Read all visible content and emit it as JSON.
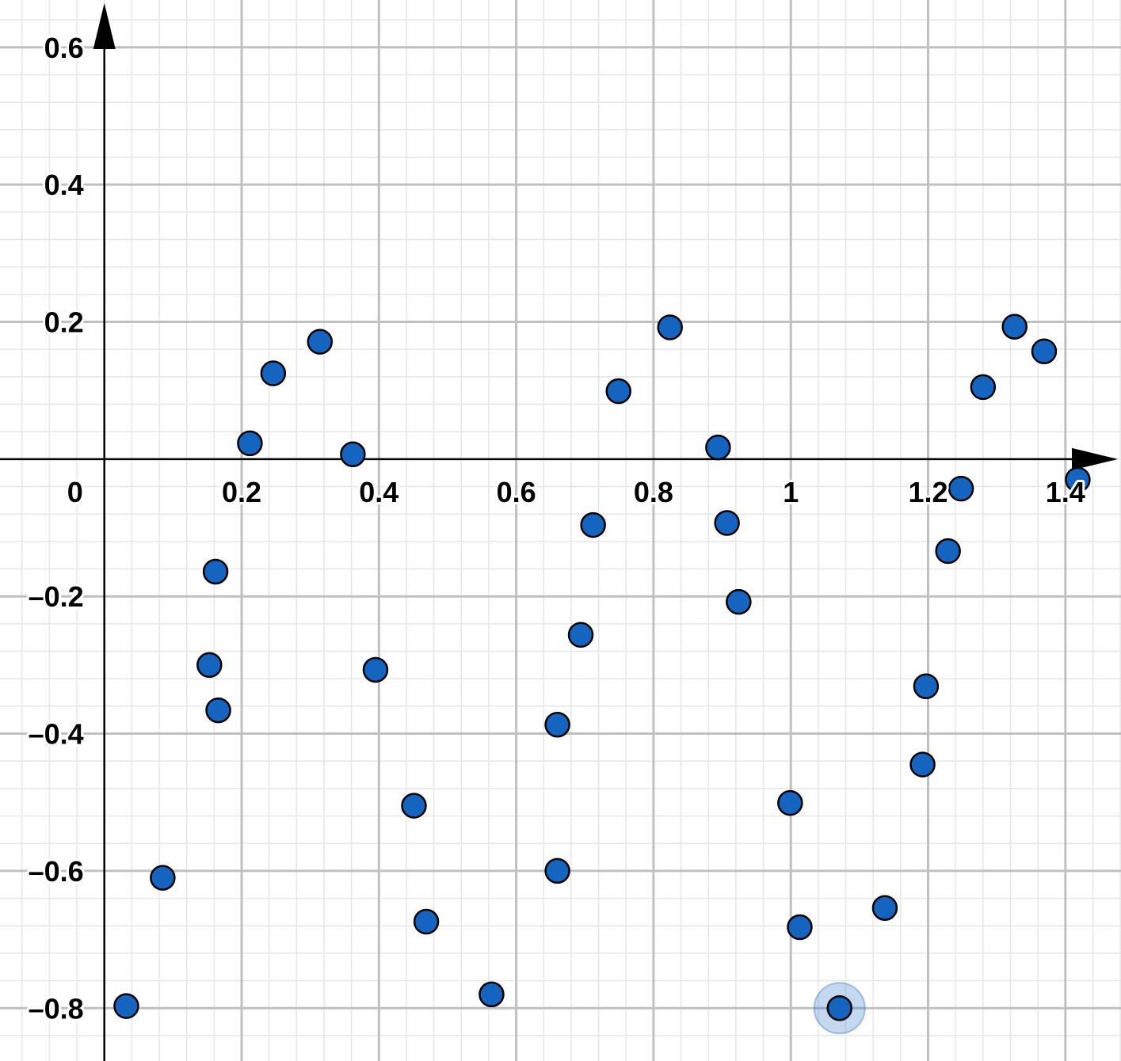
{
  "chart_data": {
    "type": "scatter",
    "x": [
      0.032,
      0.085,
      0.162,
      0.153,
      0.166,
      0.212,
      0.246,
      0.314,
      0.362,
      0.395,
      0.451,
      0.469,
      0.564,
      0.66,
      0.66,
      0.694,
      0.712,
      0.749,
      0.824,
      0.894,
      0.907,
      0.924,
      0.999,
      1.013,
      1.071,
      1.137,
      1.192,
      1.197,
      1.229,
      1.248,
      1.28,
      1.326,
      1.369,
      1.418
    ],
    "series": [
      {
        "color": "#1565c0",
        "values": [
          -0.797,
          -0.61,
          -0.164,
          -0.3,
          -0.366,
          0.023,
          0.125,
          0.171,
          0.007,
          -0.307,
          -0.505,
          -0.674,
          -0.78,
          -0.387,
          -0.6,
          -0.256,
          -0.096,
          0.099,
          0.192,
          0.017,
          -0.093,
          -0.208,
          -0.501,
          -0.682,
          -0.8,
          -0.654,
          -0.445,
          -0.331,
          -0.134,
          -0.043,
          0.105,
          0.193,
          0.157,
          -0.03
        ]
      }
    ],
    "selected": 24,
    "xlim": [
      -0.152,
      1.481
    ],
    "ylim": [
      -0.877,
      0.669
    ],
    "xticks": [
      0,
      0.2,
      0.4,
      0.6,
      0.8,
      1,
      1.2,
      1.4
    ],
    "yticks": [
      {
        "value": -0.8,
        "label": "–0.8"
      },
      {
        "value": -0.6,
        "label": "–0.6"
      },
      {
        "value": -0.4,
        "label": "–0.4"
      },
      {
        "value": -0.2,
        "label": "–0.2"
      },
      0.2,
      0.4,
      0.6
    ],
    "grid": true
  }
}
